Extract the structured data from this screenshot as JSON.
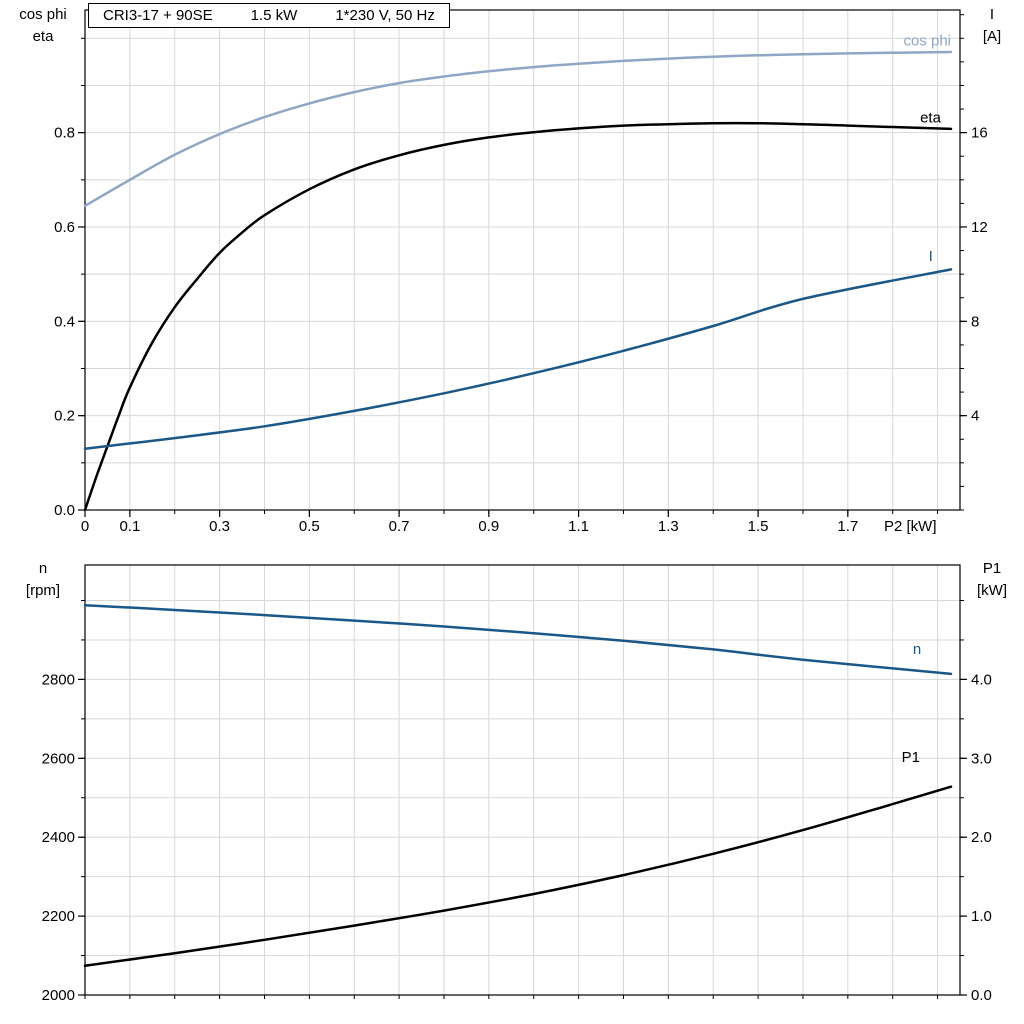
{
  "title": {
    "parts": [
      "CRI3-17 + 90SE",
      "1.5 kW",
      "1*230 V, 50 Hz"
    ]
  },
  "colors": {
    "cos_phi_curve": "#8fa7c4",
    "dark_blue_curve": "#1b5787",
    "black_curve": "#000000",
    "grid": "#d8d8d8",
    "frame": "#000000"
  },
  "chart_data": [
    {
      "type": "line",
      "name": "motor-electrical-curves",
      "x": {
        "min": 0,
        "max": 1.95,
        "minor_step": 0.1,
        "axis_label": "P2 [kW]",
        "ticks": [
          {
            "v": 0,
            "t": "0"
          },
          {
            "v": 0.1,
            "t": "0.1"
          },
          {
            "v": 0.3,
            "t": "0.3"
          },
          {
            "v": 0.5,
            "t": "0.5"
          },
          {
            "v": 0.7,
            "t": "0.7"
          },
          {
            "v": 0.9,
            "t": "0.9"
          },
          {
            "v": 1.1,
            "t": "1.1"
          },
          {
            "v": 1.3,
            "t": "1.3"
          },
          {
            "v": 1.5,
            "t": "1.5"
          },
          {
            "v": 1.7,
            "t": "1.7"
          }
        ]
      },
      "y_left": {
        "min": 0,
        "max": 1.06,
        "minor_step": 0.1,
        "title_lines": [
          "cos phi",
          "eta"
        ],
        "ticks": [
          {
            "v": 0,
            "t": "0.0"
          },
          {
            "v": 0.2,
            "t": "0.2"
          },
          {
            "v": 0.4,
            "t": "0.4"
          },
          {
            "v": 0.6,
            "t": "0.6"
          },
          {
            "v": 0.8,
            "t": "0.8"
          }
        ]
      },
      "y_right": {
        "min": 0,
        "max": 21.2,
        "minor_step": 1,
        "title_lines": [
          "I",
          "[A]"
        ],
        "ticks": [
          {
            "v": 4,
            "t": "4"
          },
          {
            "v": 8,
            "t": "8"
          },
          {
            "v": 12,
            "t": "12"
          },
          {
            "v": 16,
            "t": "16"
          }
        ]
      },
      "series": [
        {
          "name": "cos phi",
          "axis": "left",
          "color": "#8fa7c4",
          "label": {
            "x": 1.93,
            "y": 0.985,
            "anchor": "end"
          },
          "points": [
            [
              0,
              0.645
            ],
            [
              0.1,
              0.7
            ],
            [
              0.2,
              0.753
            ],
            [
              0.3,
              0.797
            ],
            [
              0.4,
              0.833
            ],
            [
              0.5,
              0.862
            ],
            [
              0.6,
              0.886
            ],
            [
              0.7,
              0.905
            ],
            [
              0.8,
              0.919
            ],
            [
              0.9,
              0.93
            ],
            [
              1.0,
              0.939
            ],
            [
              1.1,
              0.946
            ],
            [
              1.2,
              0.952
            ],
            [
              1.3,
              0.957
            ],
            [
              1.4,
              0.961
            ],
            [
              1.5,
              0.964
            ],
            [
              1.6,
              0.966
            ],
            [
              1.7,
              0.968
            ],
            [
              1.93,
              0.971
            ]
          ]
        },
        {
          "name": "eta",
          "axis": "left",
          "color": "#000000",
          "label": {
            "x": 1.861,
            "y": 0.822,
            "anchor": "start"
          },
          "points": [
            [
              0,
              0
            ],
            [
              0.025,
              0.07
            ],
            [
              0.05,
              0.135
            ],
            [
              0.075,
              0.2
            ],
            [
              0.1,
              0.26
            ],
            [
              0.15,
              0.355
            ],
            [
              0.2,
              0.43
            ],
            [
              0.25,
              0.49
            ],
            [
              0.3,
              0.545
            ],
            [
              0.35,
              0.588
            ],
            [
              0.4,
              0.625
            ],
            [
              0.5,
              0.68
            ],
            [
              0.6,
              0.722
            ],
            [
              0.7,
              0.752
            ],
            [
              0.8,
              0.774
            ],
            [
              0.9,
              0.79
            ],
            [
              1.0,
              0.801
            ],
            [
              1.1,
              0.809
            ],
            [
              1.2,
              0.815
            ],
            [
              1.3,
              0.818
            ],
            [
              1.4,
              0.82
            ],
            [
              1.5,
              0.82
            ],
            [
              1.6,
              0.818
            ],
            [
              1.7,
              0.815
            ],
            [
              1.93,
              0.808
            ]
          ]
        },
        {
          "name": "I",
          "axis": "right",
          "color": "#1b5787",
          "label": {
            "x": 1.88,
            "y": 10.55,
            "anchor": "start"
          },
          "points": [
            [
              0,
              2.6
            ],
            [
              0.2,
              3.05
            ],
            [
              0.4,
              3.55
            ],
            [
              0.6,
              4.2
            ],
            [
              0.8,
              4.95
            ],
            [
              1.0,
              5.8
            ],
            [
              1.2,
              6.75
            ],
            [
              1.4,
              7.8
            ],
            [
              1.6,
              8.95
            ],
            [
              1.93,
              10.2
            ]
          ]
        }
      ]
    },
    {
      "type": "line",
      "name": "motor-speed-power-curves",
      "x": {
        "min": 0,
        "max": 1.95,
        "minor_step": 0.1,
        "axis_label": "",
        "ticks": []
      },
      "y_left": {
        "min": 2000,
        "max": 3090,
        "minor_step": 100,
        "title_lines": [
          "n",
          "[rpm]"
        ],
        "ticks": [
          {
            "v": 2000,
            "t": "2000"
          },
          {
            "v": 2200,
            "t": "2200"
          },
          {
            "v": 2400,
            "t": "2400"
          },
          {
            "v": 2600,
            "t": "2600"
          },
          {
            "v": 2800,
            "t": "2800"
          }
        ]
      },
      "y_right": {
        "min": 0,
        "max": 5.45,
        "minor_step": 0.5,
        "title_lines": [
          "P1",
          "[kW]"
        ],
        "ticks": [
          {
            "v": 0,
            "t": "0.0"
          },
          {
            "v": 1,
            "t": "1.0"
          },
          {
            "v": 2,
            "t": "2.0"
          },
          {
            "v": 3,
            "t": "3.0"
          },
          {
            "v": 4,
            "t": "4.0"
          }
        ]
      },
      "series": [
        {
          "name": "n",
          "axis": "left",
          "color": "#1b5787",
          "label": {
            "x": 1.845,
            "y": 2865,
            "anchor": "start"
          },
          "points": [
            [
              0,
              2988
            ],
            [
              0.2,
              2976
            ],
            [
              0.4,
              2963
            ],
            [
              0.6,
              2949
            ],
            [
              0.8,
              2934
            ],
            [
              1.0,
              2917
            ],
            [
              1.2,
              2898
            ],
            [
              1.4,
              2876
            ],
            [
              1.6,
              2850
            ],
            [
              1.93,
              2814
            ]
          ]
        },
        {
          "name": "P1",
          "axis": "right",
          "color": "#000000",
          "label": {
            "x": 1.82,
            "y": 2.95,
            "anchor": "start"
          },
          "points": [
            [
              0,
              0.37
            ],
            [
              0.2,
              0.53
            ],
            [
              0.4,
              0.7
            ],
            [
              0.6,
              0.88
            ],
            [
              0.8,
              1.07
            ],
            [
              1.0,
              1.28
            ],
            [
              1.2,
              1.52
            ],
            [
              1.4,
              1.79
            ],
            [
              1.6,
              2.09
            ],
            [
              1.8,
              2.42
            ],
            [
              1.93,
              2.64
            ]
          ]
        }
      ]
    }
  ]
}
